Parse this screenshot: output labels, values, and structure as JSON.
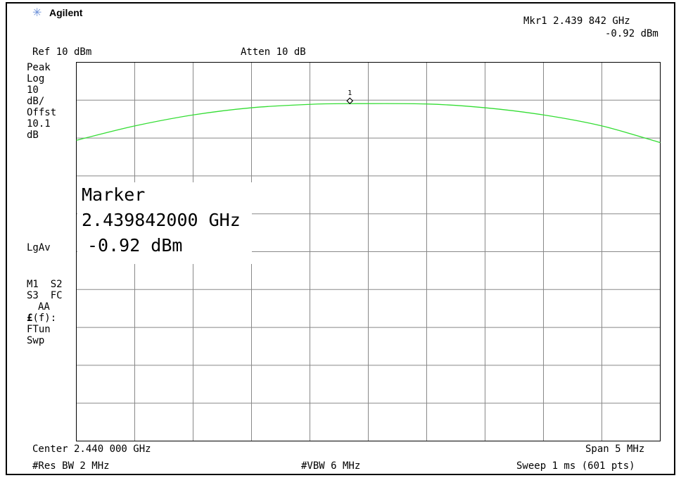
{
  "brand": {
    "logo_icon": "agilent-spark-icon",
    "name": "Agilent"
  },
  "header": {
    "marker_readout_line1": "Mkr1  2.439 842 GHz",
    "marker_readout_line2": "-0.92 dBm",
    "ref_level": "Ref 10 dBm",
    "attenuation": "Atten 10 dB"
  },
  "left_panel": {
    "scale_lines": [
      "Peak",
      "Log",
      "10",
      "dB/",
      "Offst",
      "10.1",
      "dB"
    ],
    "detector": "LgAv",
    "status_lines": [
      "M1  S2",
      "S3  FC",
      "AA"
    ],
    "func_line1_symbol": "£",
    "func_line1_text": "(f):",
    "func_lines": [
      "FTun",
      "Swp"
    ]
  },
  "marker_box": {
    "title": "Marker",
    "frequency": "2.439842000 GHz",
    "amplitude": "-0.92 dBm"
  },
  "marker_label": "1",
  "footer": {
    "center": "Center 2.440 000 GHz",
    "span": "Span 5 MHz",
    "res_bw": "#Res BW 2 MHz",
    "vbw": "#VBW 6 MHz",
    "sweep": "Sweep 1 ms (601 pts)"
  },
  "colors": {
    "trace": "#33dd33",
    "grid": "#888888",
    "logo": "#6a8fd8"
  },
  "chart_data": {
    "type": "line",
    "x_units": "GHz",
    "y_units": "dBm",
    "xlim": [
      2.4375,
      2.4425
    ],
    "ylim": [
      -90,
      10
    ],
    "y_divisions_db": 10,
    "grid": true,
    "series": [
      {
        "x": [
          2.4375,
          2.438,
          2.4385,
          2.439,
          2.4395,
          2.43984,
          2.4405,
          2.441,
          2.4415,
          2.442,
          2.4425
        ],
        "values": [
          -10.6,
          -6.8,
          -3.9,
          -2.0,
          -1.1,
          -0.92,
          -1.0,
          -2.0,
          -3.9,
          -6.8,
          -11.2
        ]
      }
    ],
    "marker": {
      "label": "1",
      "x": 2.439842,
      "y": -0.92
    }
  }
}
